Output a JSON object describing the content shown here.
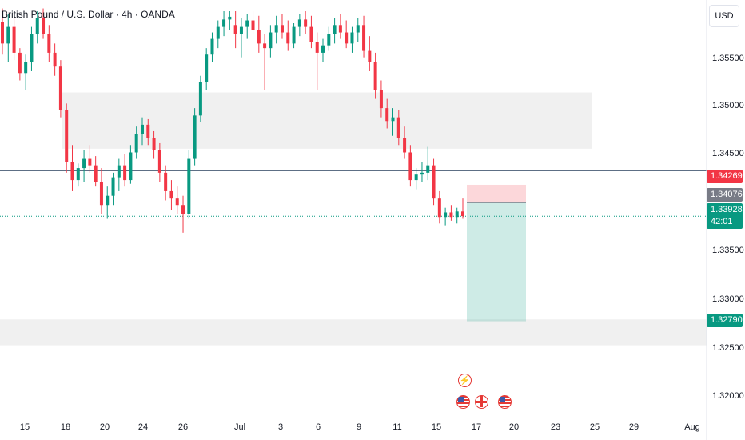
{
  "header": {
    "title": "British Pound / U.S. Dollar · 4h · OANDA",
    "currency": "USD"
  },
  "price_axis": {
    "labels": [
      "1.35500",
      "1.35000",
      "1.34500",
      "1.33500",
      "1.33000",
      "1.32500",
      "1.32000"
    ]
  },
  "time_axis": {
    "labels": [
      "15",
      "18",
      "20",
      "24",
      "26",
      "Jul",
      "3",
      "6",
      "9",
      "11",
      "15",
      "17",
      "20",
      "23",
      "25",
      "29",
      "Aug"
    ]
  },
  "price_tags": {
    "stop": {
      "value": "1.34269",
      "color": "#f23645"
    },
    "entry": {
      "value": "1.34076",
      "color": "#787b86"
    },
    "last": {
      "value": "1.33928",
      "countdown": "42:01",
      "color": "#089981"
    },
    "target": {
      "value": "1.32790",
      "color": "#089981"
    }
  },
  "events": {
    "lightning_icon": "lightning-icon",
    "flags": [
      "us-flag-icon",
      "uk-flag-icon",
      "us-flag-icon"
    ]
  },
  "chart_data": {
    "type": "candlestick",
    "title": "British Pound / U.S. Dollar · 4h · OANDA",
    "ylim": [
      1.3185,
      1.3615
    ],
    "y_ticks": [
      1.355,
      1.35,
      1.345,
      1.335,
      1.33,
      1.325,
      1.32
    ],
    "x_ticks": [
      "15",
      "18",
      "20",
      "24",
      "26",
      "Jul",
      "3",
      "6",
      "9",
      "11",
      "15",
      "17",
      "20",
      "23",
      "25",
      "29",
      "Aug"
    ],
    "last_price": 1.33928,
    "horizontal_line": 1.3442,
    "zones": [
      {
        "from": 1.3466,
        "to": 1.3527,
        "color": "#f0f0f0"
      },
      {
        "from": 1.3253,
        "to": 1.3281,
        "color": "#f0f0f0"
      }
    ],
    "position": {
      "side": "short",
      "entry": 1.34076,
      "stop": 1.34269,
      "target": 1.3279
    },
    "candles": [
      [
        1.3603,
        1.3618,
        1.3568,
        1.358
      ],
      [
        1.358,
        1.3612,
        1.356,
        1.3598
      ],
      [
        1.3598,
        1.361,
        1.3562,
        1.357
      ],
      [
        1.357,
        1.3575,
        1.354,
        1.3548
      ],
      [
        1.3548,
        1.3568,
        1.353,
        1.356
      ],
      [
        1.356,
        1.3598,
        1.355,
        1.359
      ],
      [
        1.359,
        1.3615,
        1.358,
        1.3608
      ],
      [
        1.3608,
        1.3618,
        1.3585,
        1.359
      ],
      [
        1.359,
        1.36,
        1.356,
        1.357
      ],
      [
        1.357,
        1.358,
        1.3545,
        1.3555
      ],
      [
        1.3555,
        1.3562,
        1.35,
        1.3508
      ],
      [
        1.3508,
        1.3515,
        1.344,
        1.3452
      ],
      [
        1.3452,
        1.347,
        1.342,
        1.3432
      ],
      [
        1.3432,
        1.345,
        1.3425,
        1.3445
      ],
      [
        1.3445,
        1.3465,
        1.343,
        1.3455
      ],
      [
        1.3455,
        1.347,
        1.344,
        1.3448
      ],
      [
        1.3448,
        1.3458,
        1.3425,
        1.343
      ],
      [
        1.343,
        1.3445,
        1.3395,
        1.3405
      ],
      [
        1.3405,
        1.3425,
        1.339,
        1.3415
      ],
      [
        1.3415,
        1.344,
        1.3405,
        1.3435
      ],
      [
        1.3435,
        1.3455,
        1.342,
        1.3448
      ],
      [
        1.3448,
        1.346,
        1.3425,
        1.3432
      ],
      [
        1.3432,
        1.347,
        1.3428,
        1.3462
      ],
      [
        1.3462,
        1.349,
        1.3455,
        1.3482
      ],
      [
        1.3482,
        1.35,
        1.347,
        1.3492
      ],
      [
        1.3492,
        1.3498,
        1.347,
        1.3478
      ],
      [
        1.3478,
        1.3485,
        1.3455,
        1.3465
      ],
      [
        1.3465,
        1.3472,
        1.343,
        1.344
      ],
      [
        1.344,
        1.3448,
        1.341,
        1.342
      ],
      [
        1.342,
        1.3432,
        1.34,
        1.3412
      ],
      [
        1.3412,
        1.3425,
        1.3395,
        1.3405
      ],
      [
        1.3405,
        1.3415,
        1.3375,
        1.3395
      ],
      [
        1.3395,
        1.3465,
        1.339,
        1.3455
      ],
      [
        1.3455,
        1.351,
        1.3448,
        1.3502
      ],
      [
        1.3502,
        1.3545,
        1.3495,
        1.3538
      ],
      [
        1.3538,
        1.3575,
        1.353,
        1.3568
      ],
      [
        1.3568,
        1.3592,
        1.356,
        1.3585
      ],
      [
        1.3585,
        1.3605,
        1.3575,
        1.3598
      ],
      [
        1.3598,
        1.3615,
        1.3588,
        1.3606
      ],
      [
        1.3606,
        1.3615,
        1.3595,
        1.3609
      ],
      [
        1.36,
        1.3615,
        1.3575,
        1.359
      ],
      [
        1.359,
        1.3608,
        1.3565,
        1.3598
      ],
      [
        1.3598,
        1.3612,
        1.3585,
        1.3605
      ],
      [
        1.3605,
        1.3615,
        1.359,
        1.3595
      ],
      [
        1.3595,
        1.361,
        1.357,
        1.358
      ],
      [
        1.358,
        1.359,
        1.353,
        1.3575
      ],
      [
        1.3575,
        1.36,
        1.3565,
        1.3592
      ],
      [
        1.3592,
        1.361,
        1.358,
        1.36
      ],
      [
        1.36,
        1.3612,
        1.3585,
        1.3592
      ],
      [
        1.3592,
        1.3605,
        1.3572,
        1.358
      ],
      [
        1.358,
        1.3602,
        1.3575,
        1.3598
      ],
      [
        1.3598,
        1.3612,
        1.3588,
        1.3606
      ],
      [
        1.3606,
        1.3615,
        1.359,
        1.3598
      ],
      [
        1.3598,
        1.361,
        1.3575,
        1.3582
      ],
      [
        1.3582,
        1.3592,
        1.353,
        1.357
      ],
      [
        1.357,
        1.3585,
        1.356,
        1.3578
      ],
      [
        1.3578,
        1.3598,
        1.3572,
        1.359
      ],
      [
        1.359,
        1.3608,
        1.358,
        1.36
      ],
      [
        1.36,
        1.3612,
        1.3585,
        1.3592
      ],
      [
        1.3592,
        1.3605,
        1.3575,
        1.358
      ],
      [
        1.358,
        1.3598,
        1.357,
        1.3592
      ],
      [
        1.3592,
        1.3608,
        1.3582,
        1.36
      ],
      [
        1.36,
        1.361,
        1.3565,
        1.3572
      ],
      [
        1.3572,
        1.3588,
        1.355,
        1.356
      ],
      [
        1.356,
        1.357,
        1.352,
        1.353
      ],
      [
        1.353,
        1.354,
        1.35,
        1.351
      ],
      [
        1.351,
        1.352,
        1.3488,
        1.3496
      ],
      [
        1.3496,
        1.351,
        1.348,
        1.35
      ],
      [
        1.35,
        1.3508,
        1.347,
        1.3478
      ],
      [
        1.3478,
        1.349,
        1.3455,
        1.3462
      ],
      [
        1.3462,
        1.347,
        1.3425,
        1.3432
      ],
      [
        1.3432,
        1.3445,
        1.3422,
        1.3438
      ],
      [
        1.3438,
        1.3452,
        1.343,
        1.344
      ],
      [
        1.344,
        1.3468,
        1.3432,
        1.3448
      ],
      [
        1.3448,
        1.3455,
        1.3405,
        1.3412
      ],
      [
        1.3412,
        1.342,
        1.3385,
        1.3392
      ],
      [
        1.3392,
        1.3402,
        1.3383,
        1.3397
      ],
      [
        1.3397,
        1.3405,
        1.3388,
        1.3392
      ],
      [
        1.3392,
        1.3402,
        1.3385,
        1.3398
      ],
      [
        1.3398,
        1.3412,
        1.339,
        1.3393
      ]
    ]
  }
}
